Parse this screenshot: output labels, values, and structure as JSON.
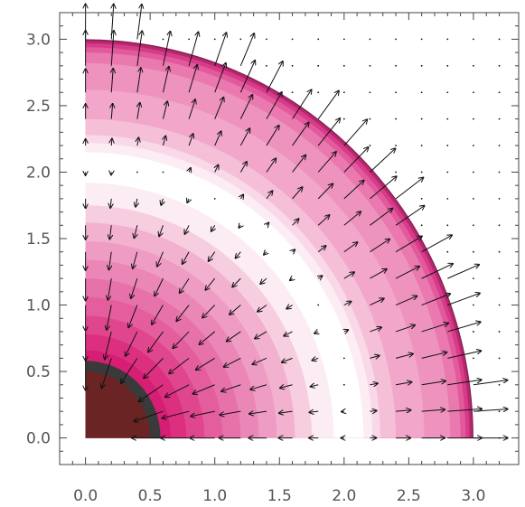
{
  "chart_data": {
    "type": "contour-quiver",
    "title": "",
    "xlabel": "",
    "ylabel": "",
    "xlim": [
      -0.2,
      3.35
    ],
    "ylim": [
      -0.2,
      3.2
    ],
    "xticks": [
      "0.0",
      "0.5",
      "1.0",
      "1.5",
      "2.0",
      "2.5",
      "3.0"
    ],
    "yticks": [
      "0.0",
      "0.5",
      "1.0",
      "1.5",
      "2.0",
      "2.5",
      "3.0"
    ],
    "grid": false,
    "core": {
      "radius": 0.5,
      "ring_outer_radius": 0.58,
      "core_color": "#6b2424",
      "ring_color": "#3a3a3a"
    },
    "contour": {
      "outer_radius": 3.0,
      "levels": [
        {
          "r_outer": 3.0,
          "color": "#8a1f55"
        },
        {
          "r_outer": 2.99,
          "color": "#b8286f"
        },
        {
          "r_outer": 2.97,
          "color": "#d63c8a"
        },
        {
          "r_outer": 2.94,
          "color": "#e35a9c"
        },
        {
          "r_outer": 2.9,
          "color": "#e979af"
        },
        {
          "r_outer": 2.82,
          "color": "#ee93be"
        },
        {
          "r_outer": 2.62,
          "color": "#f1a6ca"
        },
        {
          "r_outer": 2.4,
          "color": "#f5bfd8"
        },
        {
          "r_outer": 2.28,
          "color": "#f9d8e7"
        },
        {
          "r_outer": 2.22,
          "color": "#fcecf3"
        },
        {
          "r_outer": 2.15,
          "color": "#ffffff"
        },
        {
          "r_outer": 1.92,
          "color": "#fcecf3"
        },
        {
          "r_outer": 1.75,
          "color": "#f7cde0"
        },
        {
          "r_outer": 1.62,
          "color": "#f2b1cf"
        },
        {
          "r_outer": 1.48,
          "color": "#ee9cc3"
        },
        {
          "r_outer": 1.34,
          "color": "#ea87b6"
        },
        {
          "r_outer": 1.2,
          "color": "#e772a9"
        },
        {
          "r_outer": 1.06,
          "color": "#e45d9c"
        },
        {
          "r_outer": 0.92,
          "color": "#e0468e"
        },
        {
          "r_outer": 0.78,
          "color": "#dc2f80"
        },
        {
          "r_outer": 0.66,
          "color": "#d61f74"
        }
      ]
    },
    "vectors": {
      "grid_spacing": 0.2,
      "x_range": [
        0.0,
        3.2
      ],
      "y_range": [
        0.0,
        3.0
      ],
      "reverse_radius": 2.05,
      "peak_outer_radius": 2.8,
      "max_arrow_length": 0.24
    },
    "colors": {
      "axis": "#444444",
      "arrow": "#111111",
      "tick_text": "#555555"
    }
  }
}
